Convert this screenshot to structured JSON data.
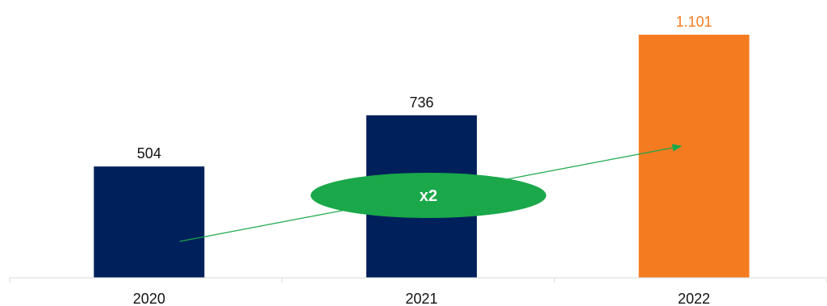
{
  "chart_data": {
    "type": "bar",
    "categories": [
      "2020",
      "2021",
      "2022"
    ],
    "values": [
      504,
      736,
      1101
    ],
    "value_labels": [
      "504",
      "736",
      "1.101"
    ],
    "bar_colors": [
      "#00205b",
      "#00205b",
      "#f47b20"
    ],
    "label_colors": [
      "#111111",
      "#111111",
      "#f47b20"
    ],
    "ylim": [
      0,
      1101
    ],
    "grid": false,
    "annotation": {
      "text": "x2",
      "color": "#1aa84a",
      "arrow_from": [
        "2020",
        0.1
      ],
      "arrow_to": [
        "2022",
        0.5
      ]
    }
  }
}
